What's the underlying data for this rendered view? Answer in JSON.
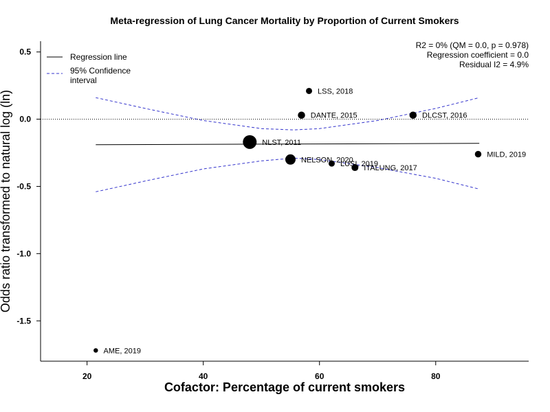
{
  "chart_data": {
    "type": "scatter",
    "title": "Meta-regression of  Lung Cancer Mortality by Proportion of Current Smokers",
    "xlabel": "Cofactor:  Percentage of current smokers",
    "ylabel": "Odds ratio transformed to natural log (ln)",
    "xlim": [
      12,
      96
    ],
    "ylim": [
      -1.8,
      0.58
    ],
    "xticks": [
      20,
      40,
      60,
      80
    ],
    "yticks": [
      0.5,
      0.0,
      -0.5,
      -1.0,
      -1.5
    ],
    "ytick_labels": [
      "0.5",
      "0.0",
      "-0.5",
      "-1.0",
      "-1.5"
    ],
    "points": [
      {
        "label": "LSS, 2018",
        "x": 58.2,
        "y": 0.21,
        "weight": 1.0
      },
      {
        "label": "DANTE, 2015",
        "x": 56.9,
        "y": 0.03,
        "weight": 1.3
      },
      {
        "label": "DLCST, 2016",
        "x": 76.1,
        "y": 0.03,
        "weight": 1.3
      },
      {
        "label": "NLST, 2011",
        "x": 48.0,
        "y": -0.17,
        "weight": 3.2
      },
      {
        "label": "NELSON, 2020",
        "x": 55.0,
        "y": -0.3,
        "weight": 2.2
      },
      {
        "label": "LUSI, 2019",
        "x": 62.1,
        "y": -0.33,
        "weight": 1.0
      },
      {
        "label": "ITALUNG, 2017",
        "x": 66.1,
        "y": -0.36,
        "weight": 1.2
      },
      {
        "label": "MILD, 2019",
        "x": 87.3,
        "y": -0.26,
        "weight": 1.1
      },
      {
        "label": "AME, 2019",
        "x": 21.5,
        "y": -1.72,
        "weight": 0.5
      }
    ],
    "regression_line": {
      "x": [
        21.5,
        87.5
      ],
      "y": [
        -0.19,
        -0.18
      ]
    },
    "ci_upper": {
      "x": [
        21.5,
        30,
        40,
        50,
        55.5,
        60,
        70,
        80,
        87.5
      ],
      "y": [
        0.16,
        0.08,
        -0.01,
        -0.07,
        -0.08,
        -0.07,
        -0.01,
        0.08,
        0.16
      ]
    },
    "ci_lower": {
      "x": [
        21.5,
        30,
        40,
        50,
        55.5,
        60,
        70,
        80,
        87.5
      ],
      "y": [
        -0.54,
        -0.46,
        -0.37,
        -0.31,
        -0.29,
        -0.3,
        -0.36,
        -0.44,
        -0.52
      ]
    },
    "reference_line_y": 0.0,
    "legend": {
      "position": "top-left",
      "items": [
        {
          "label": "Regression line",
          "style": "solid",
          "color": "#000000"
        },
        {
          "label_lines": [
            "95% Confidence",
            "interval"
          ],
          "style": "dashed",
          "color": "#3333cc"
        }
      ]
    },
    "stats_lines": [
      "R2 = 0% (QM = 0.0, p = 0.978)",
      "Regression coefficient = 0.0",
      "Residual I2 = 4.9%"
    ],
    "colors": {
      "points": "#000000",
      "ci": "#3333cc",
      "regression": "#000000"
    }
  }
}
